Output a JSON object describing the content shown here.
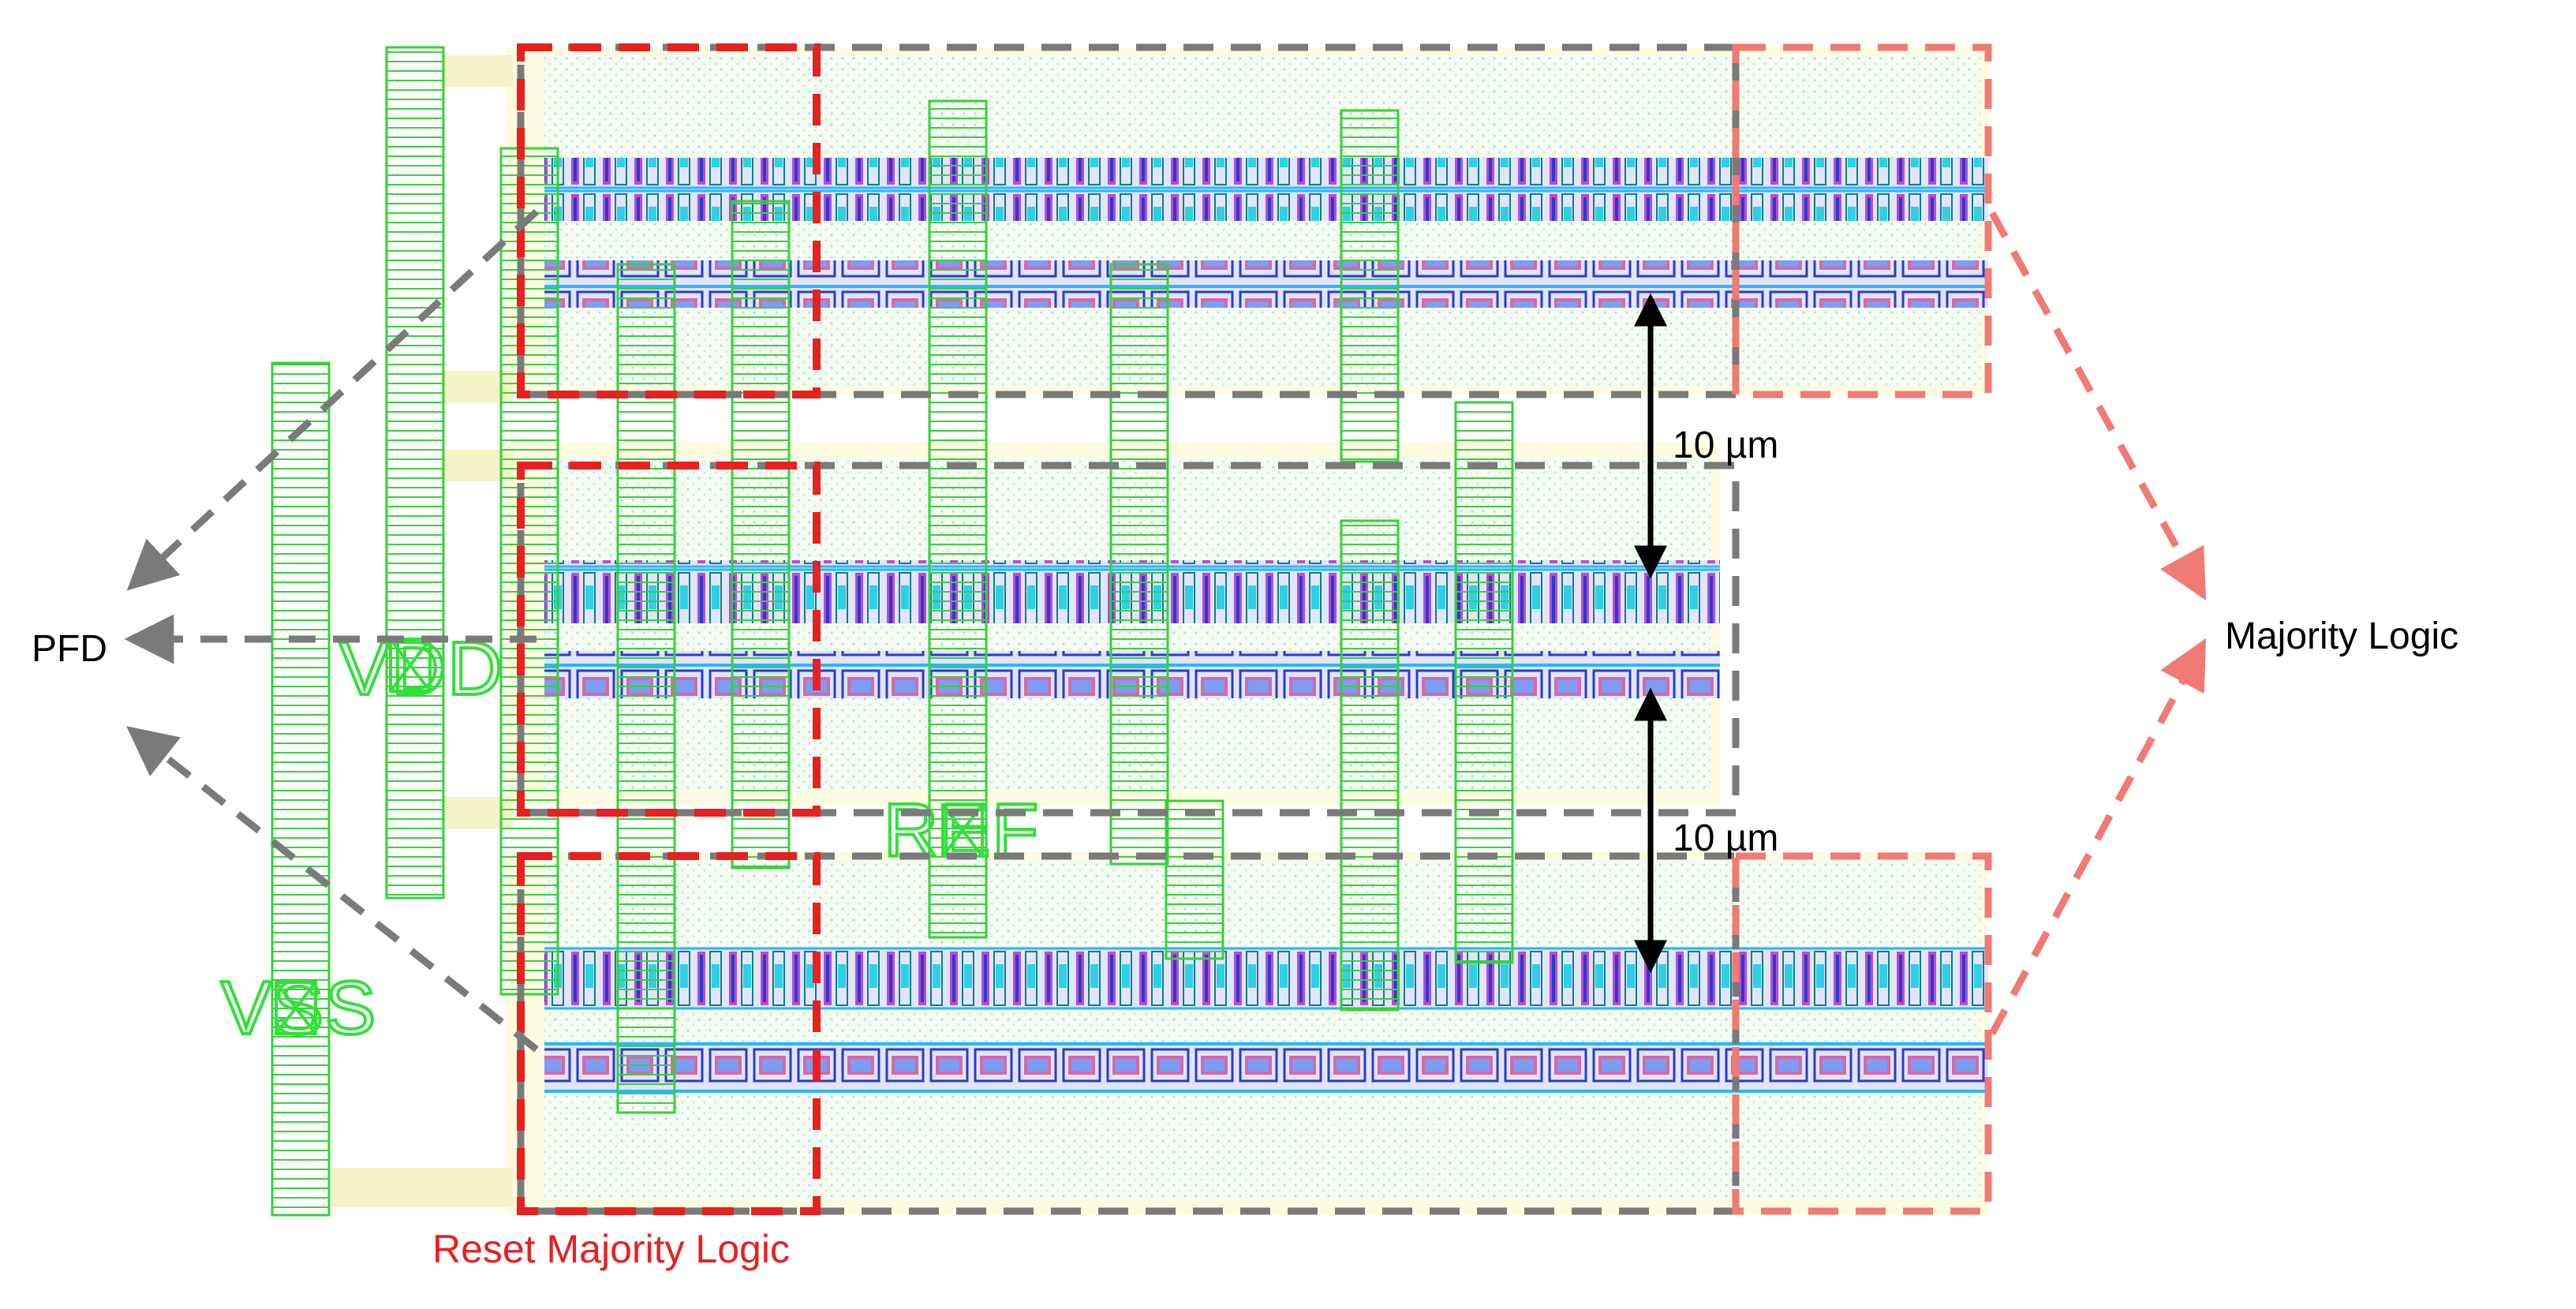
{
  "labels": {
    "pfd": "PFD",
    "majority_logic": "Majority Logic",
    "reset_majority_logic": "Reset Majority Logic",
    "spacing_top": "10 µm",
    "spacing_bottom": "10 µm"
  },
  "pins": {
    "vdd": "VDD",
    "vss": "VSS",
    "ref": "REF"
  },
  "colors": {
    "reset_box": "#e8201f",
    "majority_box": "#f07a74",
    "pfd_box": "#7a7a7a",
    "metal_green": "#36d13a",
    "pin_green": "#32e03a",
    "background_fill": "#fdfbe0",
    "cell_row": "#c6c6f2",
    "spacing_arrow": "#000000",
    "label_text": "#000000",
    "reset_label_text": "#e8201f"
  }
}
